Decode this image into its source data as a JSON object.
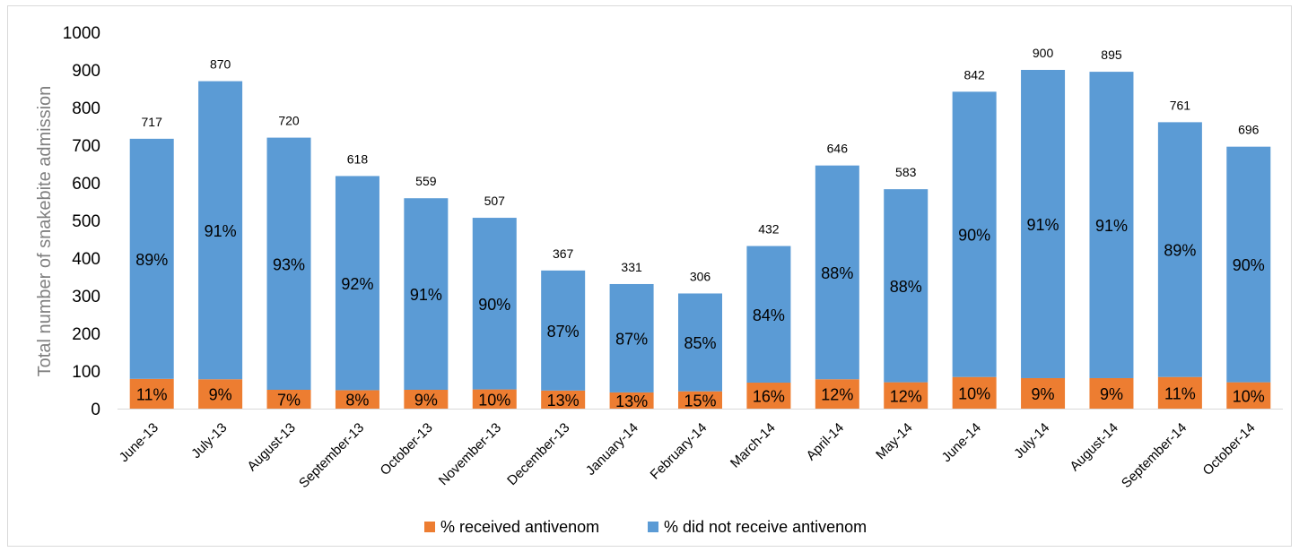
{
  "chart_data": {
    "type": "bar",
    "stacked": true,
    "title": "",
    "xlabel": "",
    "ylabel": "Total number of snakebite admission",
    "ylim": [
      0,
      1000
    ],
    "yticks": [
      0,
      100,
      200,
      300,
      400,
      500,
      600,
      700,
      800,
      900,
      1000
    ],
    "grid": false,
    "legend_position": "bottom",
    "categories": [
      "June-13",
      "July-13",
      "August-13",
      "September-13",
      "October-13",
      "November-13",
      "December-13",
      "January-14",
      "February-14",
      "March-14",
      "April-14",
      "May-14",
      "June-14",
      "July-14",
      "August-14",
      "September-14",
      "October-14"
    ],
    "totals": [
      717,
      870,
      720,
      618,
      559,
      507,
      367,
      331,
      306,
      432,
      646,
      583,
      842,
      900,
      895,
      761,
      696
    ],
    "series": [
      {
        "name": "% received antivenom",
        "color": "#ed7d31",
        "percent_labels": [
          "11%",
          "9%",
          "7%",
          "8%",
          "9%",
          "10%",
          "13%",
          "13%",
          "15%",
          "16%",
          "12%",
          "12%",
          "10%",
          "9%",
          "9%",
          "11%",
          "10%"
        ],
        "values": [
          79,
          78,
          50,
          49,
          50,
          51,
          48,
          43,
          46,
          69,
          78,
          70,
          84,
          81,
          81,
          84,
          70
        ]
      },
      {
        "name": "% did not receive antivenom",
        "color": "#5b9bd5",
        "percent_labels": [
          "89%",
          "91%",
          "93%",
          "92%",
          "91%",
          "90%",
          "87%",
          "87%",
          "85%",
          "84%",
          "88%",
          "88%",
          "90%",
          "91%",
          "91%",
          "89%",
          "90%"
        ],
        "values": [
          638,
          792,
          670,
          569,
          509,
          456,
          319,
          288,
          260,
          363,
          568,
          513,
          758,
          819,
          814,
          677,
          626
        ]
      }
    ]
  }
}
